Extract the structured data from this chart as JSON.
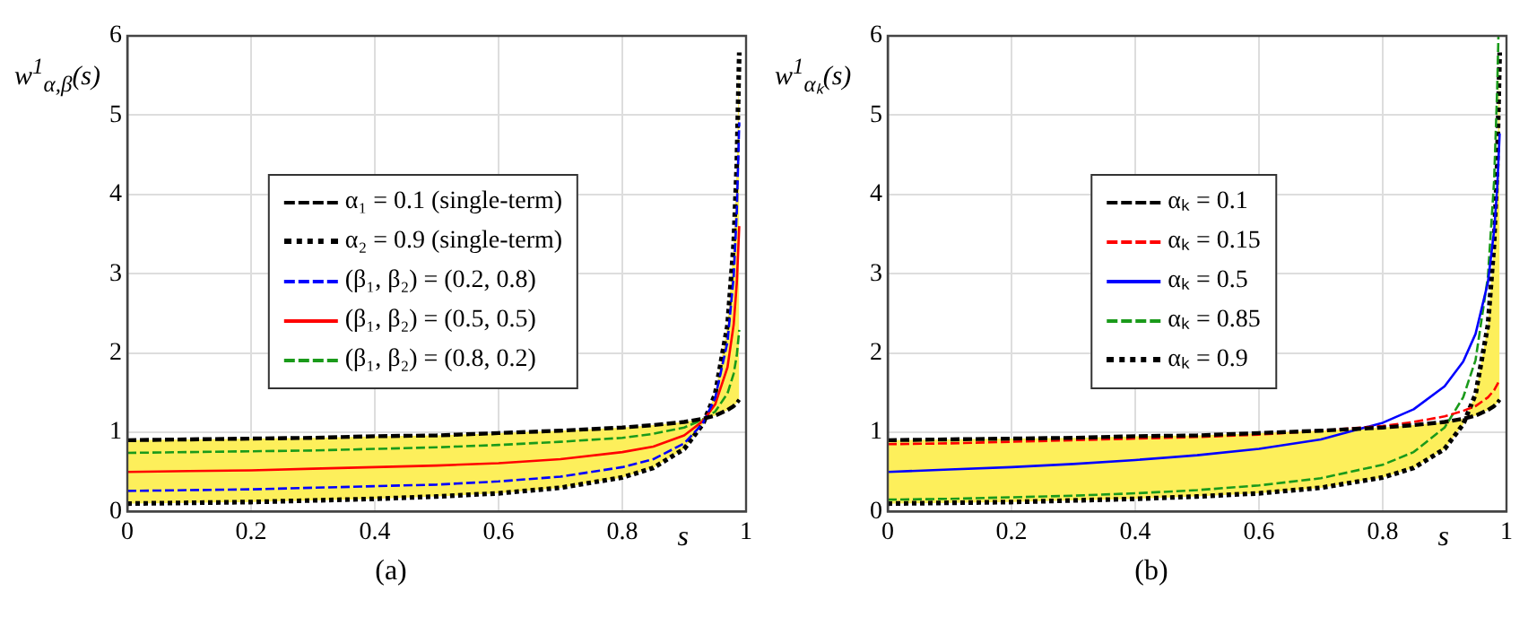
{
  "chart_data": [
    {
      "type": "line",
      "title": "(a)",
      "xlabel": "s",
      "ylabel": "w$^{1}$$_{α,β}$(s)",
      "x": [
        0,
        0.1,
        0.2,
        0.3,
        0.4,
        0.5,
        0.6,
        0.7,
        0.8,
        0.85,
        0.9,
        0.93,
        0.95,
        0.97,
        0.98,
        0.985,
        0.989
      ],
      "xlim": [
        0,
        1
      ],
      "xticks": [
        0,
        0.2,
        0.4,
        0.6,
        0.8,
        1
      ],
      "ylim": [
        0,
        6
      ],
      "yticks": [
        0,
        1,
        2,
        3,
        4,
        5,
        6
      ],
      "grid": true,
      "legend": "center",
      "marker": "none",
      "series": [
        {
          "name": "α₁ = 0.1 (single-term)",
          "color": "#000000",
          "line_style": "dashed",
          "values": [
            0.9,
            0.91,
            0.92,
            0.93,
            0.95,
            0.96,
            0.99,
            1.02,
            1.06,
            1.09,
            1.13,
            1.17,
            1.21,
            1.28,
            1.33,
            1.37,
            1.41
          ]
        },
        {
          "name": "α₂ = 0.9 (single-term)",
          "color": "#000000",
          "line_style": "dotted",
          "values": [
            0.1,
            0.11,
            0.12,
            0.14,
            0.16,
            0.19,
            0.23,
            0.3,
            0.43,
            0.55,
            0.79,
            1.1,
            1.48,
            2.35,
            3.38,
            4.38,
            5.79
          ]
        },
        {
          "name": "(β₁, β₂) = (0.2, 0.8)",
          "color": "#0000ff",
          "line_style": "dashed",
          "values": [
            0.26,
            0.27,
            0.28,
            0.3,
            0.32,
            0.34,
            0.38,
            0.44,
            0.56,
            0.66,
            0.86,
            1.11,
            1.43,
            2.14,
            2.97,
            3.78,
            4.91
          ]
        },
        {
          "name": "(β₁, β₂) = (0.5, 0.5)",
          "color": "#ff0000",
          "line_style": "solid",
          "values": [
            0.5,
            0.51,
            0.52,
            0.54,
            0.56,
            0.58,
            0.61,
            0.66,
            0.75,
            0.82,
            0.96,
            1.14,
            1.35,
            1.82,
            2.36,
            2.88,
            3.6
          ]
        },
        {
          "name": "(β₁, β₂) = (0.8, 0.2)",
          "color": "#1a9a1a",
          "line_style": "dashed",
          "values": [
            0.74,
            0.75,
            0.76,
            0.77,
            0.79,
            0.81,
            0.84,
            0.88,
            0.93,
            0.98,
            1.06,
            1.16,
            1.26,
            1.49,
            1.74,
            1.97,
            2.29
          ]
        }
      ]
    },
    {
      "type": "line",
      "title": "(b)",
      "xlabel": "s",
      "ylabel": "w$^{1}$$_{αₖ}$(s)",
      "x": [
        0,
        0.1,
        0.2,
        0.3,
        0.4,
        0.5,
        0.6,
        0.7,
        0.8,
        0.85,
        0.9,
        0.93,
        0.95,
        0.97,
        0.98,
        0.985,
        0.989
      ],
      "xlim": [
        0,
        1
      ],
      "xticks": [
        0,
        0.2,
        0.4,
        0.6,
        0.8,
        1
      ],
      "ylim": [
        0,
        6
      ],
      "yticks": [
        0,
        1,
        2,
        3,
        4,
        5,
        6
      ],
      "grid": true,
      "legend": "center",
      "marker": "none",
      "series": [
        {
          "name": "αₖ = 0.1",
          "color": "#000000",
          "line_style": "dashed",
          "values": [
            0.9,
            0.91,
            0.92,
            0.93,
            0.95,
            0.96,
            0.99,
            1.02,
            1.06,
            1.09,
            1.13,
            1.17,
            1.21,
            1.28,
            1.33,
            1.37,
            1.41
          ]
        },
        {
          "name": "αₖ = 0.15",
          "color": "#ff0000",
          "line_style": "dashed",
          "values": [
            0.85,
            0.86,
            0.88,
            0.9,
            0.92,
            0.94,
            0.97,
            1.02,
            1.08,
            1.13,
            1.2,
            1.27,
            1.33,
            1.44,
            1.53,
            1.6,
            1.67
          ]
        },
        {
          "name": "αₖ = 0.5",
          "color": "#0000ff",
          "line_style": "solid",
          "values": [
            0.5,
            0.53,
            0.56,
            0.6,
            0.65,
            0.71,
            0.79,
            0.91,
            1.12,
            1.29,
            1.58,
            1.89,
            2.24,
            2.89,
            3.54,
            4.08,
            4.77
          ]
        },
        {
          "name": "αₖ = 0.85",
          "color": "#1a9a1a",
          "line_style": "dashed",
          "x": [
            0,
            0.1,
            0.2,
            0.3,
            0.4,
            0.5,
            0.6,
            0.7,
            0.8,
            0.85,
            0.9,
            0.93,
            0.95,
            0.97,
            0.98,
            0.985,
            0.987
          ],
          "values": [
            0.15,
            0.16,
            0.18,
            0.2,
            0.23,
            0.27,
            0.33,
            0.42,
            0.59,
            0.75,
            1.06,
            1.44,
            1.91,
            2.96,
            4.17,
            5.33,
            6
          ]
        },
        {
          "name": "αₖ = 0.9",
          "color": "#000000",
          "line_style": "dotted",
          "values": [
            0.1,
            0.11,
            0.12,
            0.14,
            0.16,
            0.19,
            0.23,
            0.3,
            0.43,
            0.55,
            0.79,
            1.1,
            1.48,
            2.35,
            3.38,
            4.38,
            5.79
          ]
        }
      ]
    }
  ]
}
